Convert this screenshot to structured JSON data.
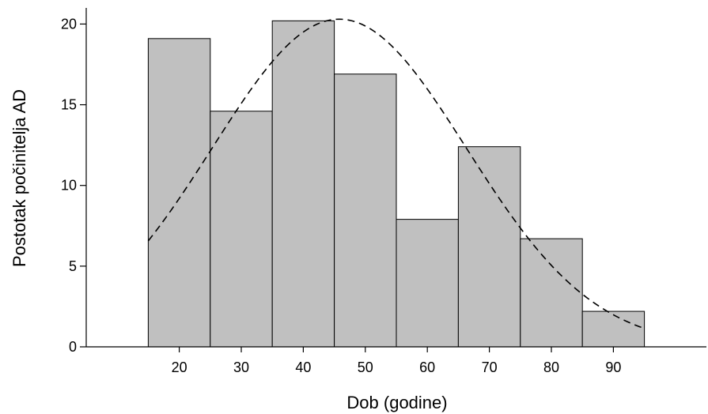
{
  "chart_data": {
    "type": "histogram",
    "xlabel": "Dob (godine)",
    "ylabel": "Postotak počinitelja AD",
    "bins": [
      {
        "start": 15,
        "end": 25,
        "value": 19.1
      },
      {
        "start": 25,
        "end": 35,
        "value": 14.6
      },
      {
        "start": 35,
        "end": 45,
        "value": 20.2
      },
      {
        "start": 45,
        "end": 55,
        "value": 16.9
      },
      {
        "start": 55,
        "end": 65,
        "value": 7.9
      },
      {
        "start": 65,
        "end": 75,
        "value": 12.4
      },
      {
        "start": 75,
        "end": 85,
        "value": 6.7
      },
      {
        "start": 85,
        "end": 95,
        "value": 2.2
      }
    ],
    "x_ticks": [
      20,
      30,
      40,
      50,
      60,
      70,
      80,
      90
    ],
    "y_ticks": [
      0,
      5,
      10,
      15,
      20
    ],
    "xlim": [
      5,
      105
    ],
    "ylim": [
      0,
      21
    ],
    "bar_color": "#c0c0c0",
    "curve": {
      "type": "normal",
      "style": "dashed",
      "mean": 45.8,
      "sd": 20.5,
      "peak": 20.3,
      "x_range": [
        15,
        95
      ]
    },
    "grid": false,
    "legend": "none"
  }
}
